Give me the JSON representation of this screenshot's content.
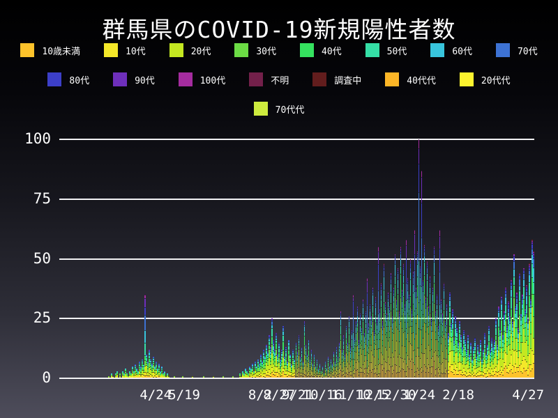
{
  "title": "群馬県のCOVID-19新規陽性者数",
  "chart_data": {
    "type": "bar",
    "stacked": true,
    "title": "群馬県のCOVID-19新規陽性者数",
    "xlabel": "",
    "ylabel": "",
    "grid": true,
    "legend_position": "top",
    "background": "gradient-black-to-slate",
    "grid_color": "#f4f4f6",
    "axis_text_color": "#ffffff",
    "groups": [
      {
        "label": "10歳未満",
        "color": "#fdc32b"
      },
      {
        "label": "10代",
        "color": "#f4e829"
      },
      {
        "label": "20代",
        "color": "#c4e821"
      },
      {
        "label": "30代",
        "color": "#6cdc45"
      },
      {
        "label": "40代",
        "color": "#35e25f"
      },
      {
        "label": "50代",
        "color": "#35dfa6"
      },
      {
        "label": "60代",
        "color": "#38c5dc"
      },
      {
        "label": "70代",
        "color": "#3d72d3"
      },
      {
        "label": "80代",
        "color": "#3c3fc8"
      },
      {
        "label": "90代",
        "color": "#6e2fbb"
      },
      {
        "label": "100代",
        "color": "#a52c9f"
      },
      {
        "label": "不明",
        "color": "#73204a"
      },
      {
        "label": "調査中",
        "color": "#621d1d"
      },
      {
        "label": "40代代",
        "color": "#fdb627"
      },
      {
        "label": "20代代",
        "color": "#fcf32e"
      },
      {
        "label": "70代代",
        "color": "#cdeb3e"
      }
    ],
    "legend_rows": [
      [
        0,
        1,
        2,
        3,
        4,
        5,
        6,
        7
      ],
      [
        8,
        9,
        10,
        11,
        12,
        13,
        14
      ],
      [
        15
      ]
    ],
    "y_ticks": [
      0,
      25,
      50,
      75,
      100
    ],
    "ylim": [
      0,
      100
    ],
    "x_ticks": [
      {
        "label": "4/24",
        "pos": 0.203
      },
      {
        "label": "5/19",
        "pos": 0.263
      },
      {
        "label": "8/2",
        "pos": 0.423
      },
      {
        "label": "8/27",
        "pos": 0.463
      },
      {
        "label": "9/21",
        "pos": 0.502
      },
      {
        "label": "10/16",
        "pos": 0.554
      },
      {
        "label": "11/10",
        "pos": 0.614
      },
      {
        "label": "12/5",
        "pos": 0.661
      },
      {
        "label": "12/30",
        "pos": 0.709
      },
      {
        "label": "1/24",
        "pos": 0.758
      },
      {
        "label": "2/18",
        "pos": 0.84
      },
      {
        "label": "4/27",
        "pos": 0.987
      }
    ],
    "profiles": {
      "default": [
        0.1,
        0.12,
        0.22,
        0.15,
        0.12,
        0.1,
        0.08,
        0.05,
        0.03,
        0.015,
        0.005,
        0.004,
        0.003,
        0,
        0,
        0
      ],
      "elderly": [
        0.02,
        0.03,
        0.06,
        0.06,
        0.08,
        0.12,
        0.17,
        0.2,
        0.15,
        0.08,
        0.03,
        0,
        0,
        0,
        0,
        0
      ]
    },
    "elderly_bar_indices": [
      61,
      210,
      220,
      228,
      248,
      254,
      257,
      259,
      272
    ],
    "bars": [
      0,
      0,
      0,
      0,
      0,
      0,
      0,
      0,
      0,
      0,
      0,
      0,
      0,
      0,
      0,
      0,
      0,
      0,
      0,
      0,
      0,
      0,
      0,
      0,
      0,
      0,
      0,
      0,
      0,
      0,
      0,
      0,
      0,
      0,
      0,
      1,
      0,
      2,
      1,
      0,
      2,
      3,
      1,
      2,
      0,
      3,
      2,
      4,
      2,
      1,
      3,
      2,
      5,
      3,
      6,
      4,
      3,
      7,
      5,
      8,
      6,
      35,
      10,
      7,
      12,
      8,
      6,
      9,
      5,
      7,
      4,
      6,
      3,
      5,
      2,
      3,
      1,
      2,
      1,
      0,
      0,
      0,
      1,
      0,
      0,
      0,
      0,
      0,
      1,
      0,
      0,
      0,
      0,
      0,
      0,
      1,
      0,
      0,
      0,
      0,
      0,
      0,
      0,
      1,
      0,
      0,
      0,
      0,
      0,
      0,
      1,
      0,
      0,
      0,
      0,
      0,
      0,
      1,
      0,
      0,
      0,
      0,
      0,
      0,
      1,
      0,
      0,
      0,
      0,
      2,
      1,
      3,
      2,
      4,
      3,
      2,
      5,
      4,
      6,
      3,
      7,
      5,
      8,
      6,
      10,
      7,
      12,
      9,
      14,
      11,
      18,
      13,
      25,
      16,
      12,
      19,
      10,
      15,
      8,
      12,
      22,
      9,
      13,
      7,
      16,
      10,
      6,
      12,
      8,
      15,
      11,
      18,
      9,
      13,
      7,
      24,
      14,
      10,
      16,
      8,
      12,
      6,
      10,
      5,
      8,
      4,
      6,
      3,
      5,
      2,
      7,
      4,
      9,
      5,
      8,
      6,
      11,
      7,
      13,
      9,
      15,
      28,
      12,
      18,
      10,
      22,
      15,
      26,
      13,
      20,
      35,
      17,
      24,
      30,
      16,
      27,
      21,
      33,
      19,
      28,
      42,
      23,
      31,
      26,
      38,
      20,
      34,
      25,
      55,
      29,
      40,
      24,
      48,
      32,
      27,
      36,
      30,
      44,
      26,
      38,
      52,
      33,
      46,
      28,
      55,
      37,
      48,
      31,
      58,
      42,
      35,
      50,
      29,
      45,
      62,
      38,
      53,
      100,
      47,
      87,
      41,
      56,
      34,
      49,
      30,
      43,
      25,
      38,
      55,
      28,
      35,
      22,
      62,
      33,
      27,
      40,
      24,
      31,
      19,
      36,
      23,
      29,
      17,
      26,
      21,
      15,
      24,
      18,
      13,
      20,
      16,
      12,
      18,
      10,
      15,
      8,
      13,
      17,
      9,
      14,
      11,
      16,
      8,
      12,
      19,
      10,
      14,
      22,
      12,
      17,
      13,
      16,
      25,
      14,
      30,
      20,
      34,
      18,
      28,
      38,
      22,
      32,
      26,
      41,
      24,
      52,
      30,
      36,
      21,
      44,
      27,
      35,
      46,
      29,
      39,
      25,
      48,
      33,
      58,
      53
    ]
  }
}
